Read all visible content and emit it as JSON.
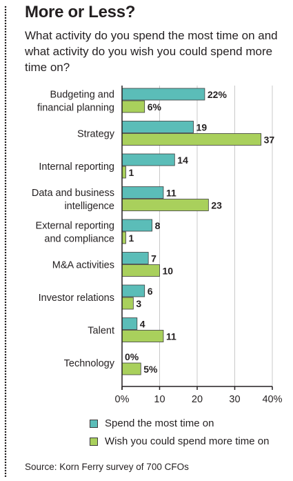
{
  "title": "More or Less?",
  "subtitle": "What activity do you spend the most time on and what activity do you wish you could spend more time on?",
  "source": "Source: Korn Ferry survey of 700 CFOs",
  "colors": {
    "spend": "#5bbdb8",
    "wish": "#a9d05c",
    "text": "#231f20"
  },
  "chart_data": {
    "type": "bar",
    "orientation": "horizontal",
    "categories": [
      [
        "Budgeting and",
        "financial planning"
      ],
      [
        "Strategy"
      ],
      [
        "Internal reporting"
      ],
      [
        "Data and business",
        "intelligence"
      ],
      [
        "External reporting",
        "and compliance"
      ],
      [
        "M&A activities"
      ],
      [
        "Investor relations"
      ],
      [
        "Talent"
      ],
      [
        "Technology"
      ]
    ],
    "series": [
      {
        "name": "Spend the most time on",
        "values": [
          22,
          19,
          14,
          11,
          8,
          7,
          6,
          4,
          0
        ],
        "labels": [
          "22%",
          "19",
          "14",
          "11",
          "8",
          "7",
          "6",
          "4",
          "0%"
        ]
      },
      {
        "name": "Wish you could spend more time on",
        "values": [
          6,
          37,
          1,
          23,
          1,
          10,
          3,
          11,
          5
        ],
        "labels": [
          "6%",
          "37",
          "1",
          "23",
          "1",
          "10",
          "3",
          "11",
          "5%"
        ]
      }
    ],
    "xlim": [
      0,
      40
    ],
    "xticks": [
      0,
      10,
      20,
      30,
      40
    ],
    "xtick_labels": [
      "0%",
      "10",
      "20",
      "30",
      "40%"
    ],
    "grid": true,
    "legend": "bottom"
  }
}
